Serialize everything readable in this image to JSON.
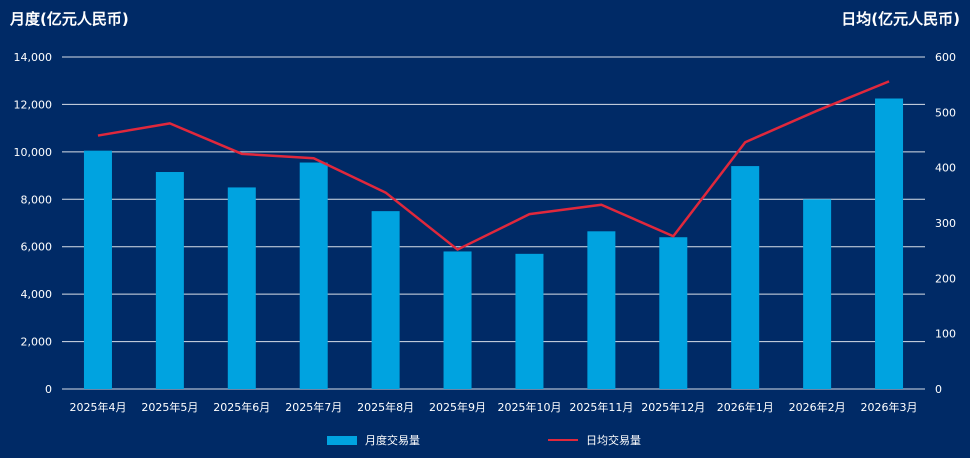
{
  "chart_data": {
    "type": "bar+line",
    "categories": [
      "2025年4月",
      "2025年5月",
      "2025年6月",
      "2025年7月",
      "2025年8月",
      "2025年9月",
      "2025年10月",
      "2025年11月",
      "2025年12月",
      "2026年1月",
      "2026年2月",
      "2026年3月"
    ],
    "series": [
      {
        "name": "月度交易量",
        "type": "bar",
        "axis": "left",
        "color": "#00a3e0",
        "values": [
          10050,
          9150,
          8500,
          9550,
          7500,
          5800,
          5700,
          6650,
          6400,
          9400,
          8000,
          12250
        ]
      },
      {
        "name": "日均交易量",
        "type": "line",
        "axis": "right",
        "color": "#e0283c",
        "values": [
          458,
          480,
          425,
          417,
          355,
          252,
          316,
          333,
          276,
          446,
          503,
          556
        ]
      }
    ],
    "ylabel_left": "月度(亿元人民币)",
    "ylabel_right": "日均(亿元人民币)",
    "ylim_left": [
      0,
      14000
    ],
    "ylim_right": [
      0,
      600
    ],
    "yticks_left": [
      "0",
      "2,000",
      "4,000",
      "6,000",
      "8,000",
      "10,000",
      "12,000",
      "14,000"
    ],
    "yticks_right": [
      "0",
      "100",
      "200",
      "300",
      "400",
      "500",
      "600"
    ],
    "legend": [
      "月度交易量",
      "日均交易量"
    ],
    "grid": true
  }
}
